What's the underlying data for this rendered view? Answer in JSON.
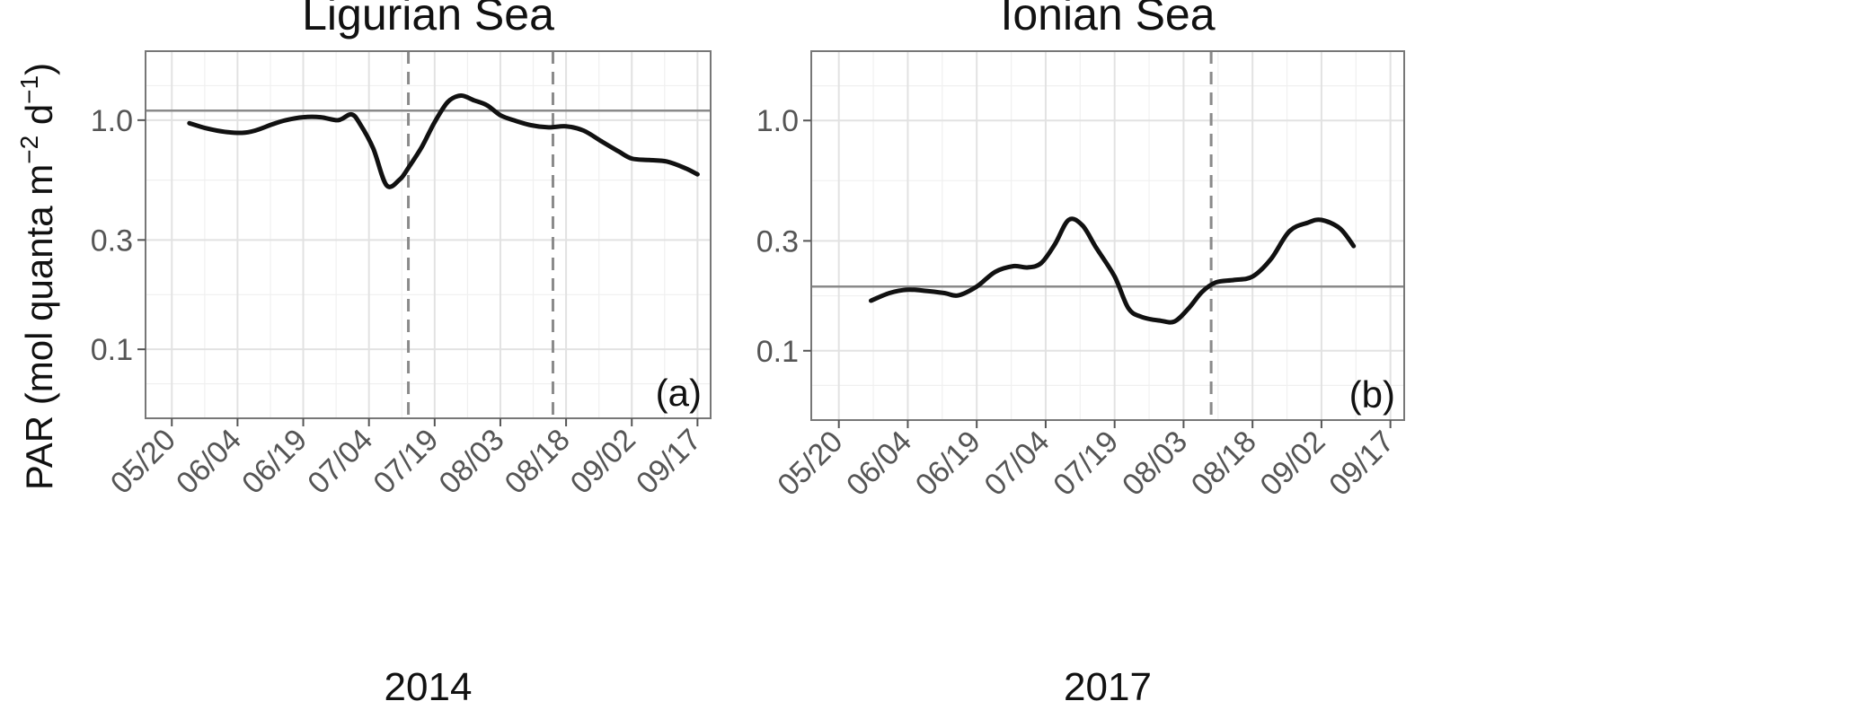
{
  "ylabel": {
    "main": "PAR (mol quanta m",
    "sup1": "−2",
    "mid": " d",
    "sup2": "−1",
    "end": ")"
  },
  "chart_data": [
    {
      "type": "line",
      "title": "Ligurian Sea",
      "xlabel": "2014",
      "panel_label": "(a)",
      "x_ticks": [
        "05/20",
        "06/04",
        "06/19",
        "07/04",
        "07/19",
        "08/03",
        "08/18",
        "09/02",
        "09/17"
      ],
      "y_ticks": [
        "0.1",
        "0.3",
        "1.0"
      ],
      "y_scale": "log",
      "ylim": [
        0.05,
        2.0
      ],
      "xlim": [
        "05/14",
        "09/20"
      ],
      "grid": true,
      "hline": 1.1,
      "vlines": [
        "07/13",
        "08/15"
      ],
      "series": [
        {
          "x": [
            "05/24",
            "05/28",
            "06/01",
            "06/05",
            "06/08",
            "06/12",
            "06/15",
            "06/19",
            "06/23",
            "06/27",
            "06/30",
            "07/02",
            "07/05",
            "07/08",
            "07/11",
            "07/13",
            "07/16",
            "07/19",
            "07/22",
            "07/25",
            "07/28",
            "07/31",
            "08/03",
            "08/06",
            "08/10",
            "08/14",
            "08/18",
            "08/22",
            "08/26",
            "08/30",
            "09/02",
            "09/06",
            "09/10",
            "09/14",
            "09/17"
          ],
          "values": [
            0.97,
            0.92,
            0.89,
            0.88,
            0.9,
            0.96,
            1.0,
            1.03,
            1.03,
            1.0,
            1.06,
            0.96,
            0.75,
            0.52,
            0.55,
            0.62,
            0.76,
            0.98,
            1.2,
            1.28,
            1.22,
            1.16,
            1.05,
            1.0,
            0.95,
            0.93,
            0.94,
            0.9,
            0.81,
            0.73,
            0.68,
            0.67,
            0.66,
            0.62,
            0.58
          ]
        }
      ]
    },
    {
      "type": "line",
      "title": "Ionian Sea",
      "xlabel": "2017",
      "panel_label": "(b)",
      "x_ticks": [
        "05/20",
        "06/04",
        "06/19",
        "07/04",
        "07/19",
        "08/03",
        "08/18",
        "09/02",
        "09/17"
      ],
      "y_ticks": [
        "0.1",
        "0.3",
        "1.0"
      ],
      "y_scale": "log",
      "ylim": [
        0.05,
        2.0
      ],
      "xlim": [
        "05/14",
        "09/20"
      ],
      "grid": true,
      "hline": 0.19,
      "vlines": [
        "08/09"
      ],
      "series": [
        {
          "x": [
            "05/27",
            "05/31",
            "06/04",
            "06/08",
            "06/12",
            "06/15",
            "06/19",
            "06/23",
            "06/27",
            "06/30",
            "07/03",
            "07/06",
            "07/09",
            "07/12",
            "07/15",
            "07/19",
            "07/22",
            "07/25",
            "07/29",
            "08/01",
            "08/04",
            "08/07",
            "08/10",
            "08/14",
            "08/18",
            "08/22",
            "08/26",
            "08/30",
            "09/02",
            "09/06",
            "09/09"
          ],
          "values": [
            0.165,
            0.178,
            0.184,
            0.182,
            0.178,
            0.174,
            0.19,
            0.22,
            0.233,
            0.23,
            0.24,
            0.29,
            0.37,
            0.35,
            0.28,
            0.21,
            0.153,
            0.14,
            0.135,
            0.134,
            0.152,
            0.18,
            0.198,
            0.203,
            0.21,
            0.25,
            0.33,
            0.36,
            0.37,
            0.34,
            0.285
          ]
        }
      ]
    }
  ]
}
